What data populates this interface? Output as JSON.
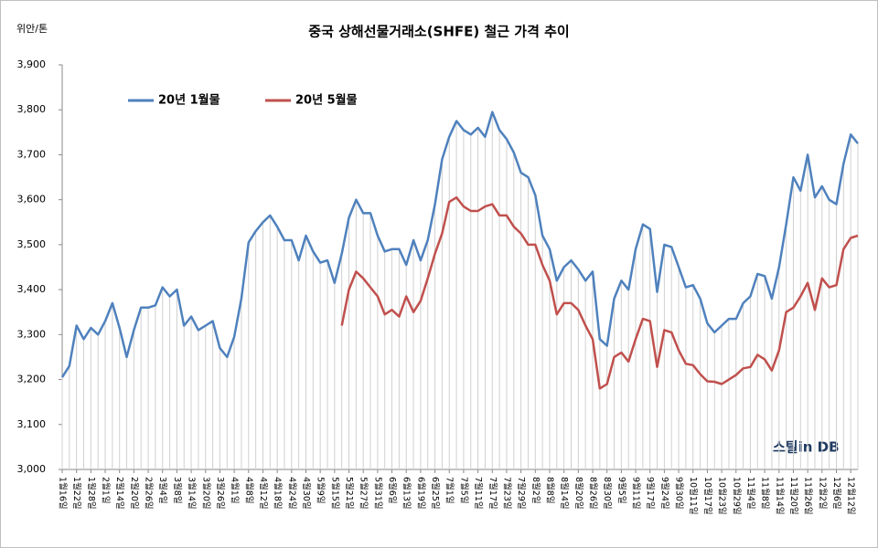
{
  "chart_data": {
    "type": "line",
    "title": "중국 상해선물거래소(SHFE) 철근 가격 추이",
    "y_unit": "위안/톤",
    "watermark": "스틸in DB",
    "categories": [
      "1월16일",
      null,
      "1월22일",
      null,
      "1월28일",
      null,
      "2월1일",
      null,
      "2월14일",
      null,
      "2월20일",
      null,
      "2월26일",
      null,
      "3월4일",
      null,
      "3월8일",
      null,
      "3월14일",
      null,
      "3월20일",
      null,
      "3월26일",
      null,
      "4월1일",
      null,
      "4월8일",
      null,
      "4월12일",
      null,
      "4월18일",
      null,
      "4월24일",
      null,
      "4월30일",
      null,
      "5월9일",
      null,
      "5월15일",
      null,
      "5월21일",
      null,
      "5월27일",
      null,
      "5월31일",
      null,
      "6월6일",
      null,
      "6월13일",
      null,
      "6월19일",
      null,
      "6월25일",
      null,
      "7월1일",
      null,
      "7월5일",
      null,
      "7월11일",
      null,
      "7월17일",
      null,
      "7월23일",
      null,
      "7월29일",
      null,
      "8월2일",
      null,
      "8월8일",
      null,
      "8월14일",
      null,
      "8월20일",
      null,
      "8월26일",
      null,
      "8월30일",
      null,
      "9월5일",
      null,
      "9월11일",
      null,
      "9월17일",
      null,
      "9월24일",
      null,
      "9월30일",
      null,
      "10월11일",
      null,
      "10월17일",
      null,
      "10월23일",
      null,
      "10월29일",
      null,
      "11월4일",
      null,
      "11월8일",
      null,
      "11월14일",
      null,
      "11월20일",
      null,
      "11월26일",
      null,
      "12월2일",
      null,
      "12월6일",
      null,
      "12월12일",
      null
    ],
    "series": [
      {
        "name": "20년 1월물",
        "color": "#4f81bd",
        "values": [
          3205,
          3230,
          3320,
          3290,
          3315,
          3300,
          3330,
          3370,
          3315,
          3250,
          3310,
          3360,
          3360,
          3365,
          3405,
          3385,
          3400,
          3320,
          3340,
          3310,
          3320,
          3330,
          3270,
          3250,
          3295,
          3380,
          3505,
          3530,
          3550,
          3565,
          3540,
          3510,
          3510,
          3465,
          3520,
          3485,
          3460,
          3465,
          3415,
          3480,
          3560,
          3600,
          3570,
          3570,
          3520,
          3485,
          3490,
          3490,
          3455,
          3510,
          3465,
          3510,
          3590,
          3690,
          3740,
          3775,
          3755,
          3745,
          3760,
          3740,
          3795,
          3755,
          3735,
          3705,
          3660,
          3650,
          3610,
          3520,
          3490,
          3420,
          3450,
          3465,
          3445,
          3420,
          3440,
          3290,
          3275,
          3380,
          3420,
          3400,
          3490,
          3545,
          3535,
          3395,
          3500,
          3495,
          3450,
          3405,
          3410,
          3380,
          3325,
          3305,
          3320,
          3335,
          3335,
          3370,
          3385,
          3435,
          3430,
          3380,
          3450,
          3545,
          3650,
          3620,
          3700,
          3605,
          3630,
          3600,
          3590,
          3680,
          3745,
          3725
        ]
      },
      {
        "name": "20년 5월물",
        "color": "#c0504d",
        "values": [
          null,
          null,
          null,
          null,
          null,
          null,
          null,
          null,
          null,
          null,
          null,
          null,
          null,
          null,
          null,
          null,
          null,
          null,
          null,
          null,
          null,
          null,
          null,
          null,
          null,
          null,
          null,
          null,
          null,
          null,
          null,
          null,
          null,
          null,
          null,
          null,
          null,
          null,
          null,
          3320,
          3400,
          3440,
          3425,
          3405,
          3385,
          3345,
          3355,
          3340,
          3385,
          3350,
          3375,
          3425,
          3480,
          3525,
          3595,
          3605,
          3585,
          3575,
          3575,
          3585,
          3590,
          3565,
          3565,
          3540,
          3525,
          3500,
          3500,
          3455,
          3420,
          3345,
          3370,
          3370,
          3355,
          3320,
          3290,
          3180,
          3190,
          3250,
          3260,
          3240,
          3290,
          3335,
          3330,
          3228,
          3310,
          3305,
          3265,
          3235,
          3232,
          3212,
          3196,
          3195,
          3190,
          3200,
          3210,
          3225,
          3228,
          3255,
          3245,
          3220,
          3265,
          3350,
          3360,
          3385,
          3415,
          3355,
          3425,
          3405,
          3410,
          3490,
          3515,
          3520
        ]
      }
    ],
    "ylim": [
      3000,
      3900
    ],
    "yticks": [
      {
        "value": 3000,
        "label": "3,000"
      },
      {
        "value": 3100,
        "label": "3,100"
      },
      {
        "value": 3200,
        "label": "3,200"
      },
      {
        "value": 3300,
        "label": "3,300"
      },
      {
        "value": 3400,
        "label": "3,400"
      },
      {
        "value": 3500,
        "label": "3,500"
      },
      {
        "value": 3600,
        "label": "3,600"
      },
      {
        "value": 3700,
        "label": "3,700"
      },
      {
        "value": 3800,
        "label": "3,800"
      },
      {
        "value": 3900,
        "label": "3,900"
      }
    ],
    "drop_lines": true,
    "legend": "top-left"
  }
}
